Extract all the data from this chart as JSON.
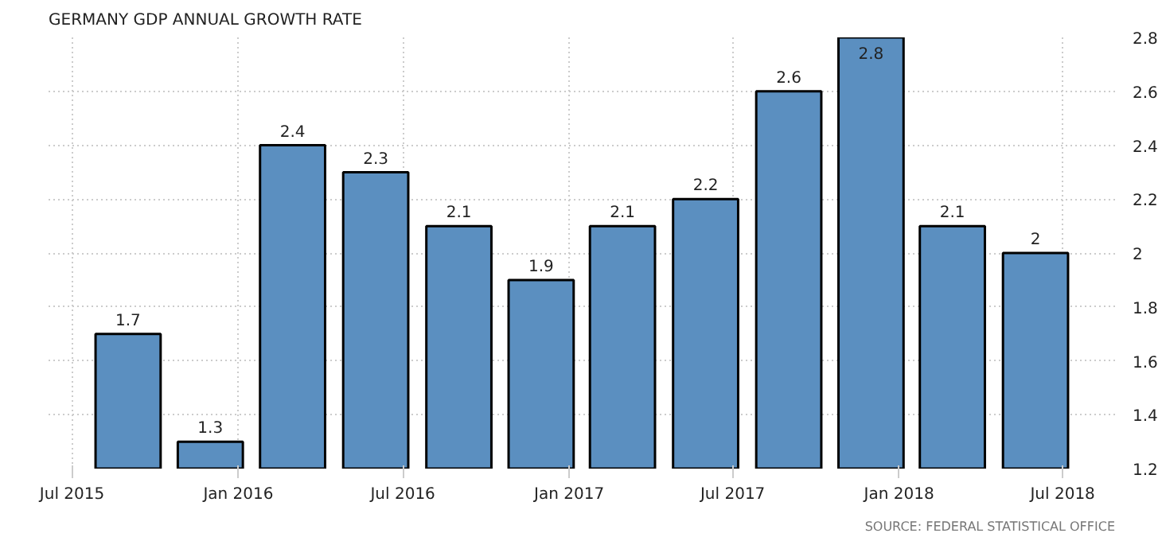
{
  "chart_data": {
    "type": "bar",
    "title": "GERMANY GDP ANNUAL GROWTH RATE",
    "x": [
      "2015-09",
      "2015-12",
      "2016-03",
      "2016-06",
      "2016-09",
      "2016-12",
      "2017-03",
      "2017-06",
      "2017-09",
      "2017-12",
      "2018-03",
      "2018-06"
    ],
    "values": [
      1.7,
      1.3,
      2.4,
      2.3,
      2.1,
      1.9,
      2.1,
      2.2,
      2.6,
      2.8,
      2.1,
      2
    ],
    "color": "#5b8fc0",
    "ylim": [
      1.2,
      2.8
    ],
    "yticks": [
      1.2,
      1.4,
      1.6,
      1.8,
      2,
      2.2,
      2.4,
      2.6,
      2.8
    ],
    "xlim": [
      "2015-06-05",
      "2018-08-28"
    ],
    "xticks": [
      {
        "value": "2015-07",
        "label": "Jul 2015"
      },
      {
        "value": "2016-01",
        "label": "Jan 2016"
      },
      {
        "value": "2016-07",
        "label": "Jul 2016"
      },
      {
        "value": "2017-01",
        "label": "Jan 2017"
      },
      {
        "value": "2017-07",
        "label": "Jul 2017"
      },
      {
        "value": "2018-01",
        "label": "Jan 2018"
      },
      {
        "value": "2018-07",
        "label": "Jul 2018"
      }
    ],
    "grid": true,
    "data_labels": true,
    "annotations": [
      "SOURCE: FEDERAL STATISTICAL OFFICE"
    ]
  }
}
